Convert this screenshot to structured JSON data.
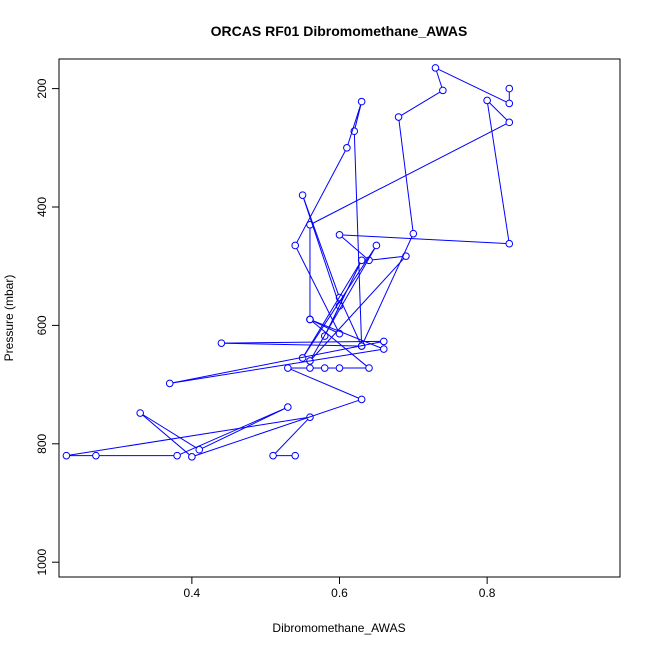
{
  "chart_data": {
    "type": "line",
    "title": "ORCAS RF01 Dibromomethane_AWAS",
    "xlabel": "Dibromomethane_AWAS",
    "ylabel": "Pressure (mbar)",
    "xlim": [
      0.22,
      0.98
    ],
    "ylim": [
      1025,
      150
    ],
    "y_reversed": true,
    "xticks": [
      0.4,
      0.6,
      0.8
    ],
    "yticks": [
      200,
      400,
      600,
      800,
      1000
    ],
    "grid": false,
    "legend": "none",
    "series_color": "#0000ff",
    "series": [
      {
        "points": [
          [
            0.54,
            820
          ],
          [
            0.51,
            820
          ],
          [
            0.56,
            755
          ],
          [
            0.23,
            820
          ],
          [
            0.27,
            820
          ],
          [
            0.38,
            820
          ],
          [
            0.53,
            738
          ],
          [
            0.41,
            810
          ],
          [
            0.33,
            748
          ],
          [
            0.4,
            822
          ],
          [
            0.63,
            725
          ],
          [
            0.53,
            672
          ],
          [
            0.56,
            672
          ],
          [
            0.58,
            672
          ],
          [
            0.6,
            672
          ],
          [
            0.64,
            672
          ],
          [
            0.56,
            590
          ],
          [
            0.66,
            640
          ],
          [
            0.37,
            698
          ],
          [
            0.66,
            627
          ],
          [
            0.44,
            630
          ],
          [
            0.63,
            635
          ],
          [
            0.6,
            553
          ],
          [
            0.55,
            380
          ],
          [
            0.6,
            567
          ],
          [
            0.58,
            618
          ],
          [
            0.63,
            490
          ],
          [
            0.55,
            655
          ],
          [
            0.65,
            465
          ],
          [
            0.56,
            660
          ],
          [
            0.69,
            483
          ],
          [
            0.64,
            490
          ],
          [
            0.6,
            447
          ],
          [
            0.83,
            462
          ],
          [
            0.8,
            220
          ],
          [
            0.83,
            257
          ],
          [
            0.56,
            430
          ],
          [
            0.56,
            590
          ],
          [
            0.6,
            614
          ],
          [
            0.54,
            465
          ],
          [
            0.61,
            300
          ],
          [
            0.63,
            222
          ],
          [
            0.62,
            272
          ],
          [
            0.63,
            635
          ],
          [
            0.7,
            445
          ],
          [
            0.68,
            248
          ],
          [
            0.74,
            203
          ],
          [
            0.73,
            165
          ],
          [
            0.83,
            225
          ],
          [
            0.83,
            200
          ]
        ]
      }
    ]
  }
}
